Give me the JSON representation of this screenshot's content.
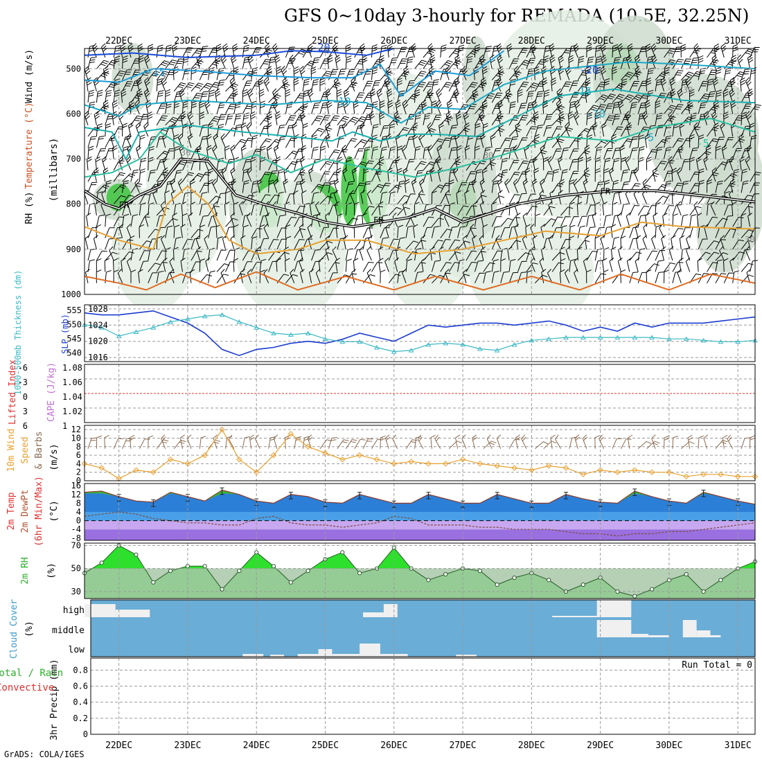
{
  "title": "GFS 0~10day 3-hourly for REMADA (10.5E, 32.25N)",
  "credit": "GrADS: COLA/IGES",
  "dates": [
    "22DEC",
    "23DEC",
    "24DEC",
    "25DEC",
    "26DEC",
    "27DEC",
    "28DEC",
    "29DEC",
    "30DEC",
    "31DEC"
  ],
  "panels": {
    "upper": {
      "label_rh": "RH (%)",
      "label_temp": "Temperature (°C)",
      "label_wind": "Wind (m/s)",
      "unit": "(millibars)",
      "yticks": [
        "500",
        "600",
        "700",
        "800",
        "900",
        "1000"
      ],
      "contour_labels": [
        "-20",
        "-15",
        "-10",
        "-20",
        "-15",
        "-10",
        "-5",
        "-5",
        "FR",
        "FR",
        "FR",
        "30",
        "30",
        "30",
        "30"
      ]
    },
    "thickness": {
      "left_label": "1000-500mb Thickness (dm)",
      "right_label": "SLP (mb)",
      "left_ticks": [
        "555",
        "550",
        "545",
        "540"
      ],
      "right_ticks": [
        "1028",
        "1024",
        "1020",
        "1016"
      ]
    },
    "stability": {
      "left_label": "Lifted Index",
      "right_label": "CAPE (J/kg)",
      "left_ticks": [
        "-6",
        "-3",
        "0",
        "3",
        "6"
      ],
      "right_ticks": [
        "1.08",
        "1.06",
        "1.04",
        "1.02",
        "1"
      ]
    },
    "wind10m": {
      "label1": "10m Wind",
      "label2": "Speed",
      "label3": "& Barbs",
      "unit": "(m/s)",
      "yticks": [
        "12",
        "10",
        "8",
        "6",
        "4",
        "2",
        "0"
      ]
    },
    "temp2m": {
      "label1": "2m Temp",
      "label2": "2m DewPt",
      "label3": "(6hr Min/Max)",
      "unit": "(°C)",
      "yticks": [
        "16",
        "12",
        "8",
        "4",
        "0",
        "-4",
        "-8"
      ]
    },
    "rh2m": {
      "label": "2m RH",
      "unit": "(%)",
      "yticks": [
        "70",
        "50",
        "30"
      ]
    },
    "cloud": {
      "label": "Cloud Cover",
      "unit": "(%)",
      "levels": [
        "high",
        "middle",
        "low"
      ]
    },
    "precip": {
      "label1": "3hr Precip (mm)",
      "label2": "Total / Rain",
      "label3": "Convective",
      "run_total": "Run Total = 0",
      "yticks": [
        "0.8",
        "0.6",
        "0.4",
        "0.2",
        "0"
      ]
    }
  },
  "colors": {
    "plot_bg": "#ffffff",
    "rh_light": "#e3efe3",
    "rh_mid": "#cddccd",
    "rh_green": "#3cc43c",
    "slp_line": "#1a3ad0",
    "thickness_line": "#3cb8c4",
    "cape_zero": "#e03030",
    "wind_speed": "#e8a030",
    "barb": "#8a6a50",
    "temp_fill": "#2c7fd6",
    "temp_fill2": "#4aa0e8",
    "temp_green": "#3cb43c",
    "dew_fill": "#c8a8f0",
    "dew_dark": "#9a70e0",
    "rh_fill": "#2ce02c",
    "rh_grey": "#a8c8a8",
    "cloud_bg": "#6aadd6",
    "cloud_white": "#f0f0f0"
  },
  "chart_data": [
    {
      "type": "line",
      "title": "",
      "xlabel": "",
      "ylabel": "1000-500mb Thickness (dm) / SLP (mb)",
      "x_days": [
        21.5,
        21.75,
        22,
        22.25,
        22.5,
        22.75,
        23,
        23.25,
        23.5,
        23.75,
        24,
        24.25,
        24.5,
        24.75,
        25,
        25.25,
        25.5,
        25.75,
        26,
        26.25,
        26.5,
        26.75,
        27,
        27.25,
        27.5,
        27.75,
        28,
        28.25,
        28.5,
        28.75,
        29,
        29.25,
        29.5,
        29.75,
        30,
        30.25,
        30.5,
        30.75,
        31,
        31.25
      ],
      "series": [
        {
          "name": "SLP (mb)",
          "values": [
            1027,
            1026.5,
            1026.5,
            1027,
            1027.5,
            1026,
            1024.5,
            1022,
            1018,
            1016.5,
            1018,
            1018.5,
            1019.5,
            1020,
            1019.5,
            1020.5,
            1022,
            1021,
            1020,
            1022,
            1024,
            1023.5,
            1024,
            1024.5,
            1024.5,
            1024,
            1024.5,
            1025,
            1024,
            1022.5,
            1023.5,
            1022.5,
            1024.5,
            1023.5,
            1024.5,
            1024.5,
            1024.5,
            1025,
            1025.5,
            1026
          ]
        },
        {
          "name": "1000-500mb Thickness (dm)",
          "values": [
            550,
            549,
            546,
            547.5,
            549,
            551,
            552,
            553,
            553.5,
            551,
            549,
            547,
            546.5,
            547,
            545,
            544,
            544,
            542,
            540.5,
            541,
            543,
            543.5,
            543,
            541.5,
            541,
            543,
            544.5,
            545,
            545.5,
            545.5,
            545.5,
            545.5,
            545.5,
            545.5,
            545,
            545,
            544.5,
            544,
            544,
            544.5
          ]
        }
      ],
      "xlim": [
        21.5,
        31.25
      ],
      "ylim_left": [
        537,
        557
      ],
      "ylim_right": [
        1015,
        1029
      ]
    },
    {
      "type": "line",
      "title": "",
      "xlabel": "",
      "ylabel": "10m Wind Speed (m/s)",
      "x_days": [
        21.5,
        21.75,
        22,
        22.25,
        22.5,
        22.75,
        23,
        23.25,
        23.5,
        23.75,
        24,
        24.25,
        24.5,
        24.75,
        25,
        25.25,
        25.5,
        25.75,
        26,
        26.25,
        26.5,
        26.75,
        27,
        27.25,
        27.5,
        27.75,
        28,
        28.25,
        28.5,
        28.75,
        29,
        29.25,
        29.5,
        29.75,
        30,
        30.25,
        30.5,
        30.75,
        31,
        31.25
      ],
      "series": [
        {
          "name": "Speed",
          "values": [
            4,
            3,
            0.5,
            2.5,
            2,
            5,
            4,
            6,
            12,
            5,
            2,
            6,
            11,
            8,
            6.5,
            5,
            6,
            5,
            4,
            4.5,
            4,
            4,
            5,
            4,
            3.5,
            3,
            2.5,
            3.5,
            3,
            1.5,
            2.5,
            2,
            2.5,
            2,
            2,
            1,
            1.5,
            1.5,
            1,
            1
          ]
        }
      ],
      "xlim": [
        21.5,
        31.25
      ],
      "ylim": [
        0,
        13
      ]
    },
    {
      "type": "area",
      "title": "",
      "xlabel": "",
      "ylabel": "2m Temp / 2m DewPt (°C)",
      "x_days": [
        21.5,
        21.75,
        22,
        22.25,
        22.5,
        22.75,
        23,
        23.25,
        23.5,
        23.75,
        24,
        24.25,
        24.5,
        24.75,
        25,
        25.25,
        25.5,
        25.75,
        26,
        26.25,
        26.5,
        26.75,
        27,
        27.25,
        27.5,
        27.75,
        28,
        28.25,
        28.5,
        28.75,
        29,
        29.25,
        29.5,
        29.75,
        30,
        30.25,
        30.5,
        30.75,
        31,
        31.25
      ],
      "series": [
        {
          "name": "2m Temp",
          "values": [
            13,
            13.5,
            11,
            9,
            8.5,
            13,
            11,
            9,
            14,
            12,
            9,
            8,
            12,
            11,
            8.5,
            8,
            12,
            10,
            8,
            8,
            12,
            10,
            8,
            8,
            12,
            10,
            8,
            8,
            12,
            10,
            8.5,
            8,
            13.5,
            11,
            9,
            8,
            13,
            11,
            9,
            7.5
          ]
        },
        {
          "name": "2m DewPt",
          "values": [
            2,
            3,
            4,
            3,
            1,
            0,
            -1,
            -1,
            -2,
            -2,
            1,
            2,
            -1,
            -2,
            -2,
            -3,
            -2,
            -1,
            2,
            1,
            -2,
            -2,
            -2,
            -3,
            -3,
            -4,
            -4,
            -4,
            -5,
            -6,
            -6,
            -7,
            -6,
            -6,
            -5,
            -5,
            -4,
            -3,
            -2,
            -1
          ]
        }
      ],
      "xlim": [
        21.5,
        31.25
      ],
      "ylim": [
        -9,
        17
      ]
    },
    {
      "type": "area",
      "title": "",
      "xlabel": "",
      "ylabel": "2m RH (%)",
      "x_days": [
        21.5,
        21.75,
        22,
        22.25,
        22.5,
        22.75,
        23,
        23.25,
        23.5,
        23.75,
        24,
        24.25,
        24.5,
        24.75,
        25,
        25.25,
        25.5,
        25.75,
        26,
        26.25,
        26.5,
        26.75,
        27,
        27.25,
        27.5,
        27.75,
        28,
        28.25,
        28.5,
        28.75,
        29,
        29.25,
        29.5,
        29.75,
        30,
        30.25,
        30.5,
        30.75,
        31,
        31.25
      ],
      "series": [
        {
          "name": "2m RH",
          "values": [
            46,
            55,
            70,
            62,
            38,
            48,
            52,
            52,
            32,
            48,
            64,
            52,
            38,
            48,
            58,
            64,
            46,
            50,
            68,
            50,
            40,
            45,
            50,
            48,
            36,
            42,
            46,
            40,
            30,
            36,
            42,
            30,
            26,
            32,
            40,
            45,
            30,
            40,
            50,
            56
          ]
        }
      ],
      "xlim": [
        21.5,
        31.25
      ],
      "ylim": [
        24,
        72
      ]
    },
    {
      "type": "bar",
      "title": "",
      "xlabel": "",
      "ylabel": "3hr Precip (mm)",
      "categories": [
        "22DEC",
        "23DEC",
        "24DEC",
        "25DEC",
        "26DEC",
        "27DEC",
        "28DEC",
        "29DEC",
        "30DEC",
        "31DEC"
      ],
      "values": [
        0,
        0,
        0,
        0,
        0,
        0,
        0,
        0,
        0,
        0
      ],
      "ylim": [
        0,
        0.95
      ]
    }
  ]
}
